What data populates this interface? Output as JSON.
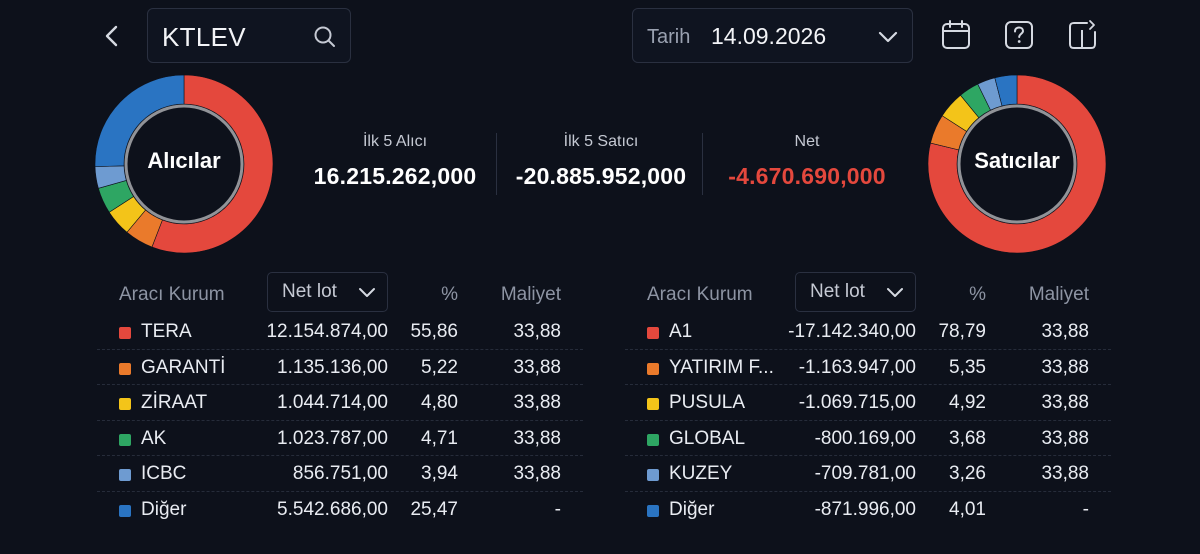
{
  "header": {
    "symbol": "KTLEV",
    "date_label": "Tarih",
    "date_value": "14.09.2026"
  },
  "icons": {
    "back": "chevron-left-icon",
    "search": "search-icon",
    "date_dropdown": "chevron-down-icon",
    "calendar": "calendar-icon",
    "help": "help-icon",
    "layout": "layout-switch-icon"
  },
  "colors": {
    "background": "#0d111b",
    "negative": "#e4483d",
    "series": [
      "#e4483d",
      "#ea7a2b",
      "#f3c419",
      "#2ea663",
      "#6e9bd1",
      "#2a74c2"
    ]
  },
  "donuts": {
    "buyers_title": "Alıcılar",
    "sellers_title": "Satıcılar"
  },
  "stats": {
    "top5_buy_label": "İlk 5 Alıcı",
    "top5_buy_value": "16.215.262,000",
    "top5_sell_label": "İlk 5 Satıcı",
    "top5_sell_value": "-20.885.952,000",
    "net_label": "Net",
    "net_value": "-4.670.690,000"
  },
  "buyers_table": {
    "col_broker": "Aracı Kurum",
    "col_sort": "Net lot",
    "col_pct": "%",
    "col_cost": "Maliyet",
    "rows": [
      {
        "name": "TERA",
        "lot": "12.154.874,00",
        "pct": "55,86",
        "cost": "33,88",
        "share": 55.86,
        "color": "#e4483d"
      },
      {
        "name": "GARANTİ",
        "lot": "1.135.136,00",
        "pct": "5,22",
        "cost": "33,88",
        "share": 5.22,
        "color": "#ea7a2b"
      },
      {
        "name": "ZİRAAT",
        "lot": "1.044.714,00",
        "pct": "4,80",
        "cost": "33,88",
        "share": 4.8,
        "color": "#f3c419"
      },
      {
        "name": "AK",
        "lot": "1.023.787,00",
        "pct": "4,71",
        "cost": "33,88",
        "share": 4.71,
        "color": "#2ea663"
      },
      {
        "name": "ICBC",
        "lot": "856.751,00",
        "pct": "3,94",
        "cost": "33,88",
        "share": 3.94,
        "color": "#6e9bd1"
      },
      {
        "name": "Diğer",
        "lot": "5.542.686,00",
        "pct": "25,47",
        "cost": "-",
        "share": 25.47,
        "color": "#2a74c2"
      }
    ]
  },
  "sellers_table": {
    "col_broker": "Aracı Kurum",
    "col_sort": "Net lot",
    "col_pct": "%",
    "col_cost": "Maliyet",
    "rows": [
      {
        "name": "A1",
        "lot": "-17.142.340,00",
        "pct": "78,79",
        "cost": "33,88",
        "share": 78.79,
        "color": "#e4483d"
      },
      {
        "name": "YATIRIM F...",
        "lot": "-1.163.947,00",
        "pct": "5,35",
        "cost": "33,88",
        "share": 5.35,
        "color": "#ea7a2b"
      },
      {
        "name": "PUSULA",
        "lot": "-1.069.715,00",
        "pct": "4,92",
        "cost": "33,88",
        "share": 4.92,
        "color": "#f3c419"
      },
      {
        "name": "GLOBAL",
        "lot": "-800.169,00",
        "pct": "3,68",
        "cost": "33,88",
        "share": 3.68,
        "color": "#2ea663"
      },
      {
        "name": "KUZEY",
        "lot": "-709.781,00",
        "pct": "3,26",
        "cost": "33,88",
        "share": 3.26,
        "color": "#6e9bd1"
      },
      {
        "name": "Diğer",
        "lot": "-871.996,00",
        "pct": "4,01",
        "cost": "-",
        "share": 4.01,
        "color": "#2a74c2"
      }
    ]
  }
}
